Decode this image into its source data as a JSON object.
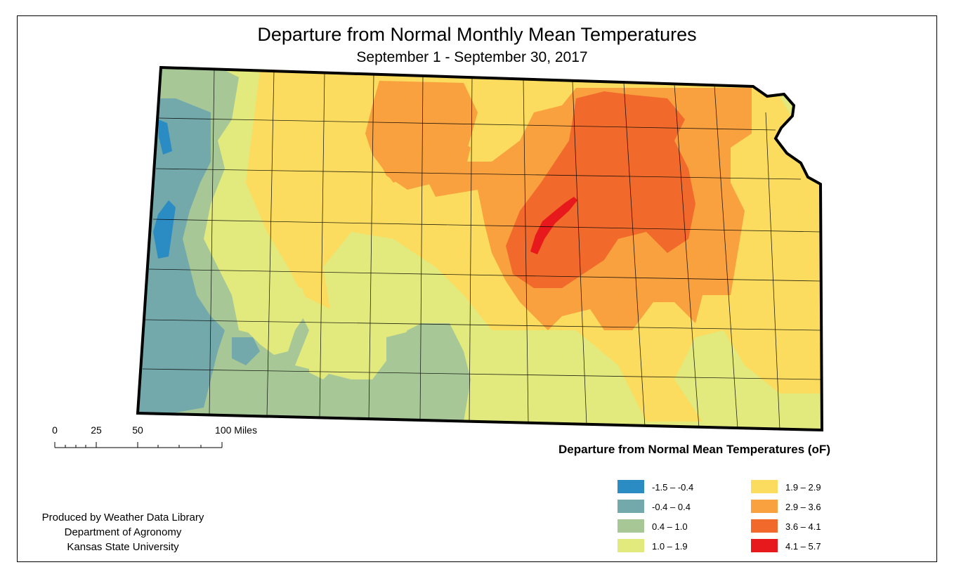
{
  "title": "Departure from Normal Monthly Mean Temperatures",
  "subtitle": "September 1 - September 30, 2017",
  "scale": {
    "labels": [
      "0",
      "25",
      "50",
      "100 Miles"
    ]
  },
  "legend": {
    "title": "Departure from Normal Mean Temperatures (oF)",
    "items": [
      {
        "label": "-1.5 – -0.4",
        "color": "#2b8cc4"
      },
      {
        "label": "-0.4 – 0.4",
        "color": "#74a9ab"
      },
      {
        "label": "0.4 – 1.0",
        "color": "#a7c896"
      },
      {
        "label": "1.0 – 1.9",
        "color": "#e2e97d"
      },
      {
        "label": "1.9 – 2.9",
        "color": "#fbdc5e"
      },
      {
        "label": "2.9 – 3.6",
        "color": "#f9a13f"
      },
      {
        "label": "3.6 – 4.1",
        "color": "#f26a2b"
      },
      {
        "label": "4.1 – 5.7",
        "color": "#e8191c"
      }
    ]
  },
  "credits": {
    "line1": "Produced by Weather Data Library",
    "line2": "Department of Agronomy",
    "line3": "Kansas State University"
  }
}
